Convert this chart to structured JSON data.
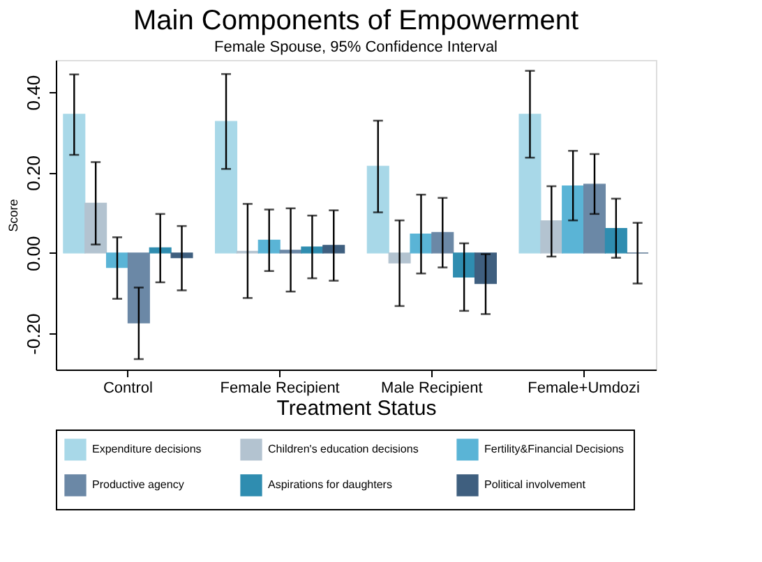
{
  "chart_data": {
    "type": "bar",
    "title": "Main Components of Empowerment",
    "subtitle": "Female Spouse, 95% Confidence Interval",
    "xlabel": "Treatment Status",
    "ylabel": "Score",
    "categories": [
      "Control",
      "Female Recipient",
      "Male Recipient",
      "Female+Umdozi"
    ],
    "series": [
      {
        "name": "Expenditure decisions",
        "color": "#a8d8e8",
        "values": [
          0.345,
          0.327,
          0.216,
          0.345
        ],
        "errors": [
          [
            0.244,
            0.444
          ],
          [
            0.209,
            0.445
          ],
          [
            0.101,
            0.329
          ],
          [
            0.237,
            0.453
          ]
        ]
      },
      {
        "name": "Children's education decisions",
        "color": "#b3c3d0",
        "values": [
          0.124,
          0.004,
          -0.025,
          0.08
        ],
        "errors": [
          [
            0.021,
            0.226
          ],
          [
            -0.112,
            0.122
          ],
          [
            -0.132,
            0.081
          ],
          [
            -0.009,
            0.166
          ]
        ]
      },
      {
        "name": "Fertility&Financial Decisions",
        "color": "#5ab4d6",
        "values": [
          -0.036,
          0.032,
          0.047,
          0.167
        ],
        "errors": [
          [
            -0.114,
            0.039
          ],
          [
            -0.045,
            0.108
          ],
          [
            -0.051,
            0.145
          ],
          [
            0.081,
            0.254
          ]
        ]
      },
      {
        "name": "Productive agency",
        "color": "#6b88a6",
        "values": [
          -0.174,
          0.007,
          0.051,
          0.171
        ],
        "errors": [
          [
            -0.264,
            -0.086
          ],
          [
            -0.096,
            0.111
          ],
          [
            -0.036,
            0.137
          ],
          [
            0.097,
            0.246
          ]
        ]
      },
      {
        "name": "Aspirations for daughters",
        "color": "#2f8db0",
        "values": [
          0.013,
          0.015,
          -0.06,
          0.061
        ],
        "errors": [
          [
            -0.073,
            0.097
          ],
          [
            -0.063,
            0.093
          ],
          [
            -0.144,
            0.024
          ],
          [
            -0.012,
            0.135
          ]
        ]
      },
      {
        "name": "Political involvement",
        "color": "#3f5f7f",
        "values": [
          -0.012,
          0.019,
          -0.076,
          0.0
        ],
        "errors": [
          [
            -0.093,
            0.067
          ],
          [
            -0.069,
            0.106
          ],
          [
            -0.152,
            -0.003
          ],
          [
            -0.076,
            0.075
          ]
        ]
      }
    ],
    "ylim": [
      -0.29,
      0.48
    ],
    "yticks": [
      {
        "value": -0.2,
        "label": "-0.20"
      },
      {
        "value": 0,
        "label": "0.00"
      },
      {
        "value": 0.2,
        "label": "0.20"
      },
      {
        "value": 0.4,
        "label": "0.40"
      }
    ],
    "grid": false,
    "legend": "bottom"
  }
}
